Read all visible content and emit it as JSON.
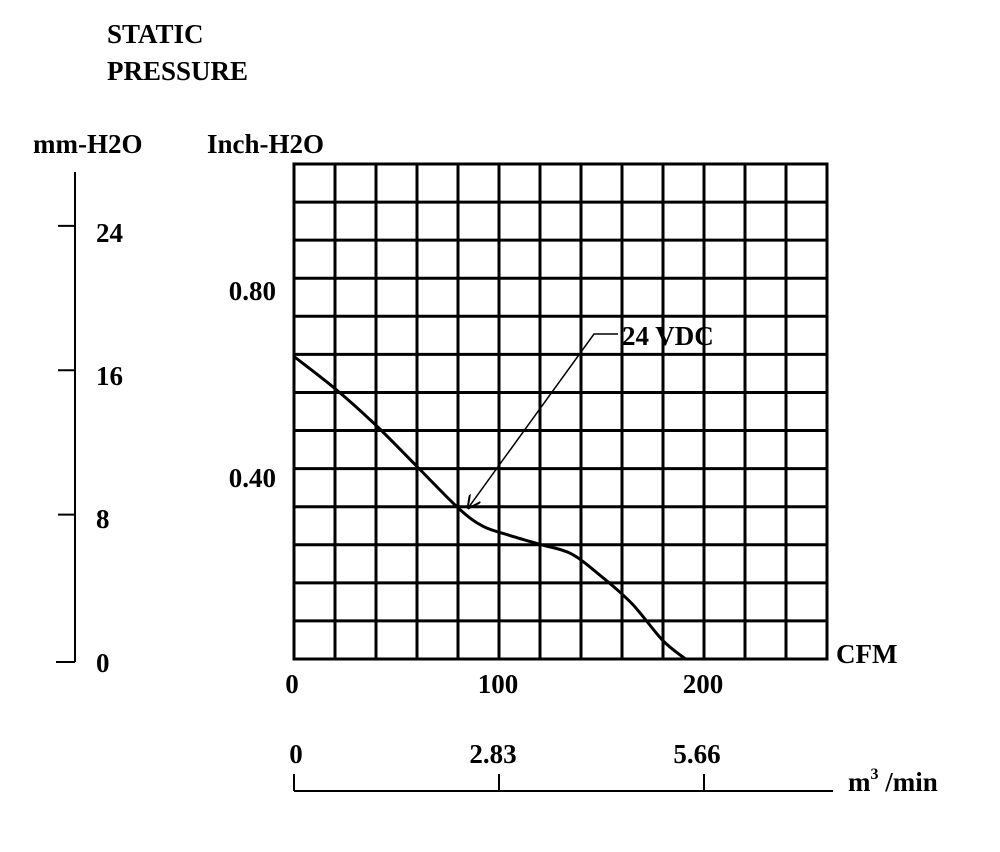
{
  "chart_data": {
    "type": "line",
    "title": "STATIC\nPRESSURE",
    "title_line1": "STATIC",
    "title_line2": "PRESSURE",
    "left_axis_label": "mm-H2O",
    "left_axis_ticks": [
      "24",
      "16",
      "8",
      "0"
    ],
    "left_axis_values": [
      24,
      16,
      8,
      0
    ],
    "ylabel": "Inch-H2O",
    "y_ticks": [
      "0.80",
      "0.40"
    ],
    "y_tick_values": [
      0.8,
      0.4
    ],
    "ylim": [
      0,
      1.08
    ],
    "xlabel": "CFM",
    "x_ticks": [
      "0",
      "100",
      "200"
    ],
    "x_tick_values": [
      0,
      100,
      200
    ],
    "xlim": [
      0,
      260
    ],
    "bottom_axis_label": "m3 /min",
    "bottom_axis_label_base": "m",
    "bottom_axis_label_sup": "3",
    "bottom_axis_label_suffix": " /min",
    "bottom_axis_ticks": [
      "0",
      "2.83",
      "5.66"
    ],
    "bottom_axis_tick_cfm": [
      0,
      100,
      200
    ],
    "grid": true,
    "series": [
      {
        "name": "24 VDC",
        "x": [
          0,
          20,
          40,
          60,
          80,
          92,
          105,
          120,
          135,
          150,
          165,
          180,
          191
        ],
        "y": [
          0.66,
          0.59,
          0.51,
          0.42,
          0.33,
          0.29,
          0.27,
          0.25,
          0.23,
          0.18,
          0.12,
          0.04,
          0.0
        ]
      }
    ],
    "annotation": {
      "text": "24 VDC",
      "target_x": 85,
      "target_y": 0.33
    }
  }
}
